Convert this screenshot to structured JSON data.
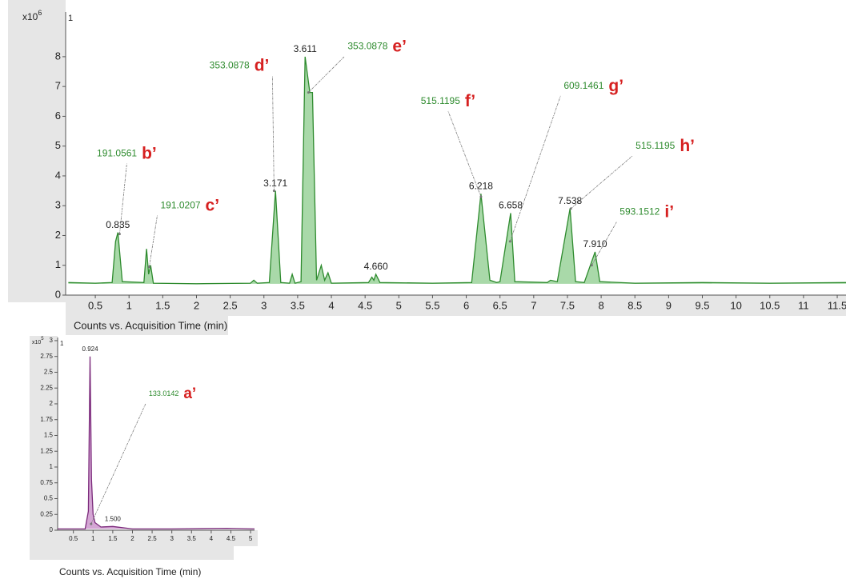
{
  "chart_data": [
    {
      "type": "line",
      "x_label": "Counts vs. Acquisition Time (min)",
      "y_multiplier": "x10",
      "y_exponent": "6",
      "panel_label": "1",
      "color": "#2e8b2e",
      "fill_color": "#93cf93",
      "xlim": [
        0.06,
        11.63
      ],
      "ylim": [
        0,
        9.5
      ],
      "xticks": [
        0.5,
        1,
        1.5,
        2,
        2.5,
        3,
        3.5,
        4,
        4.5,
        5,
        5.5,
        6,
        6.5,
        7,
        7.5,
        8,
        8.5,
        9,
        9.5,
        10,
        10.5,
        11,
        11.5
      ],
      "yticks": [
        0,
        1,
        2,
        3,
        4,
        5,
        6,
        7,
        8
      ],
      "x": [
        0.1,
        0.5,
        0.75,
        0.8,
        0.835,
        0.9,
        1.22,
        1.26,
        1.29,
        1.32,
        1.36,
        2.0,
        2.8,
        2.85,
        2.9,
        3.08,
        3.171,
        3.25,
        3.38,
        3.42,
        3.46,
        3.55,
        3.611,
        3.68,
        3.72,
        3.78,
        3.85,
        3.9,
        3.95,
        4.0,
        4.55,
        4.6,
        4.63,
        4.66,
        4.72,
        5.5,
        6.08,
        6.218,
        6.35,
        6.45,
        6.5,
        6.658,
        6.72,
        7.2,
        7.25,
        7.35,
        7.538,
        7.62,
        7.75,
        7.91,
        7.98,
        8.5,
        9.5,
        10.5,
        11.63
      ],
      "values": [
        0.42,
        0.4,
        0.42,
        1.8,
        2.1,
        0.45,
        0.42,
        1.55,
        0.7,
        1.0,
        0.4,
        0.38,
        0.4,
        0.5,
        0.4,
        0.42,
        3.5,
        0.42,
        0.4,
        0.7,
        0.4,
        0.45,
        8.0,
        6.8,
        6.8,
        0.5,
        1.0,
        0.5,
        0.75,
        0.4,
        0.42,
        0.6,
        0.5,
        0.7,
        0.42,
        0.4,
        0.42,
        3.4,
        0.5,
        0.42,
        0.45,
        2.75,
        0.45,
        0.42,
        0.5,
        0.45,
        2.9,
        0.45,
        0.42,
        1.45,
        0.45,
        0.4,
        0.42,
        0.4,
        0.42
      ],
      "peak_labels": [
        {
          "text": "0.835",
          "x": 0.835,
          "y": 2.1
        },
        {
          "text": "3.171",
          "x": 3.171,
          "y": 3.5
        },
        {
          "text": "3.611",
          "x": 3.611,
          "y": 8.0
        },
        {
          "text": "4.660",
          "x": 4.66,
          "y": 0.7
        },
        {
          "text": "6.218",
          "x": 6.218,
          "y": 3.4
        },
        {
          "text": "6.658",
          "x": 6.658,
          "y": 2.75
        },
        {
          "text": "7.538",
          "x": 7.538,
          "y": 2.9
        },
        {
          "text": "7.910",
          "x": 7.91,
          "y": 1.45
        }
      ],
      "annotations": [
        {
          "mz": "191.0561",
          "label": "b’",
          "x": 0.86,
          "y": 2.05
        },
        {
          "mz": "191.0207",
          "label": "c’",
          "x": 1.3,
          "y": 0.95
        },
        {
          "mz": "353.0878",
          "label": "d’",
          "x": 3.15,
          "y": 3.5
        },
        {
          "mz": "353.0878",
          "label": "e’",
          "x": 3.66,
          "y": 6.8
        },
        {
          "mz": "515.1195",
          "label": "f’",
          "x": 6.218,
          "y": 3.3
        },
        {
          "mz": "609.1461",
          "label": "g’",
          "x": 6.65,
          "y": 1.8
        },
        {
          "mz": "515.1195",
          "label": "h’",
          "x": 7.55,
          "y": 2.9
        },
        {
          "mz": "593.1512",
          "label": "i’",
          "x": 7.86,
          "y": 1.0
        }
      ]
    },
    {
      "type": "line",
      "x_label": "Counts vs. Acquisition Time (min)",
      "y_multiplier": "x10",
      "y_exponent": "5",
      "panel_label": "1",
      "color": "#7b2a7b",
      "fill_color": "#c990c9",
      "xlim": [
        0.1,
        5.1
      ],
      "ylim": [
        0,
        3.05
      ],
      "xticks": [
        0.5,
        1,
        1.5,
        2,
        2.5,
        3,
        3.5,
        4,
        4.5,
        5
      ],
      "yticks": [
        0,
        0.25,
        0.5,
        0.75,
        1,
        1.25,
        1.5,
        1.75,
        2,
        2.25,
        2.5,
        2.75,
        3
      ],
      "x": [
        0.1,
        0.8,
        0.88,
        0.924,
        0.96,
        1.0,
        1.05,
        1.2,
        1.5,
        2.0,
        3.0,
        4.4,
        5.1
      ],
      "values": [
        0.02,
        0.02,
        0.3,
        2.75,
        0.8,
        0.25,
        0.12,
        0.05,
        0.06,
        0.02,
        0.02,
        0.03,
        0.02
      ],
      "peak_labels": [
        {
          "text": "0.924",
          "x": 0.924,
          "y": 2.75
        },
        {
          "text": "1.500",
          "x": 1.5,
          "y": 0.06
        }
      ],
      "annotations": [
        {
          "mz": "133.0142",
          "label": "a’",
          "x": 0.95,
          "y": 0.1
        }
      ]
    }
  ]
}
